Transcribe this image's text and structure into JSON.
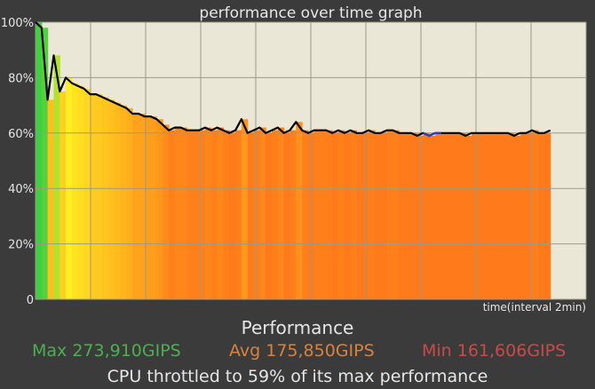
{
  "chart_data": {
    "type": "line",
    "title": "performance over time graph",
    "xlabel": "time(interval 2min)",
    "ylabel": "",
    "ylim": [
      0,
      100
    ],
    "yticks": [
      "0",
      "20%",
      "40%",
      "60%",
      "80%",
      "100%"
    ],
    "yticks_values": [
      0,
      20,
      40,
      60,
      80,
      100
    ],
    "x_intervals": 10,
    "grid": true,
    "series": [
      {
        "values": [
          100,
          98,
          72,
          88,
          75,
          80,
          78,
          77,
          76,
          74,
          74,
          73,
          72,
          71,
          70,
          69,
          67,
          67,
          66,
          66,
          65,
          63,
          61,
          62,
          62,
          61,
          61,
          61,
          62,
          61,
          62,
          61,
          60,
          61,
          65,
          60,
          61,
          62,
          60,
          61,
          62,
          60,
          61,
          64,
          61,
          60,
          61,
          61,
          61,
          60,
          61,
          60,
          61,
          60,
          60,
          61,
          60,
          60,
          61,
          61,
          60,
          60,
          60,
          59,
          60,
          59,
          60,
          60,
          60,
          60,
          60,
          59,
          60,
          60,
          60,
          60,
          60,
          60,
          60,
          59,
          60,
          60,
          61,
          60,
          60,
          61
        ]
      }
    ],
    "colors": {
      "plot_background": "#ebe7d6",
      "line": "#000000",
      "highlight": "#2a3bd6",
      "fill_high": "#3fcf3f",
      "fill_mid": "#ffee22",
      "fill_low": "#ff7a1a"
    }
  },
  "stats": {
    "heading": "Performance",
    "max": "Max 273,910GIPS",
    "avg": "Avg 175,850GIPS",
    "min": "Min 161,606GIPS",
    "throttle": "CPU throttled to 59% of its max performance"
  }
}
